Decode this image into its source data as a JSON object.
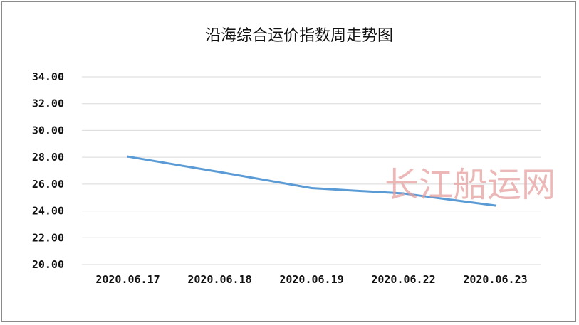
{
  "chart_data": {
    "type": "line",
    "title": "沿海综合运价指数周走势图",
    "categories": [
      "2020.06.17",
      "2020.06.18",
      "2020.06.19",
      "2020.06.22",
      "2020.06.23"
    ],
    "series": [
      {
        "values": [
          28.05,
          26.9,
          25.7,
          25.3,
          24.4
        ]
      }
    ],
    "y_ticks": [
      "20.00",
      "22.00",
      "24.00",
      "26.00",
      "28.00",
      "30.00",
      "32.00",
      "34.00"
    ],
    "ylim": [
      20,
      34
    ],
    "grid": true,
    "colors": {
      "line": "#5b9bd5",
      "grid": "#d9d9d9"
    }
  },
  "watermark": "长江船运网"
}
